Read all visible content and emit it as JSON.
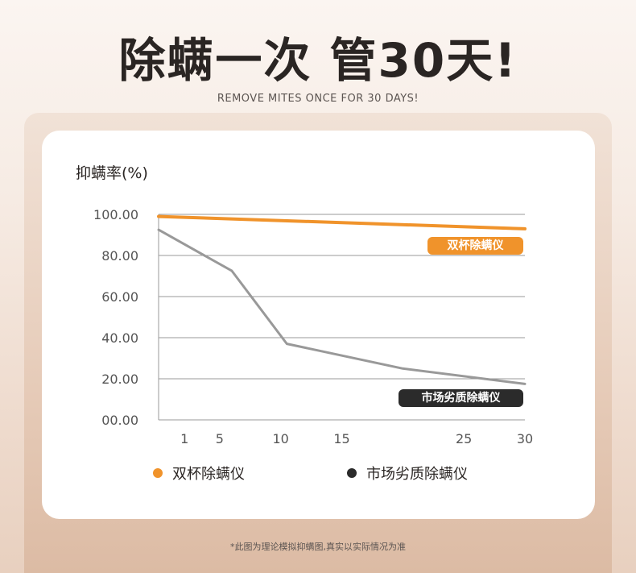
{
  "header": {
    "title": "除螨一次 管30天!",
    "subtitle": "REMOVE MITES ONCE FOR 30 DAYS!"
  },
  "note": "*此图为理论模拟抑螨图,真实以实际情况为准",
  "colors": {
    "accent": "#f0932b",
    "market": "#999999",
    "market_tag": "#2b2b2b",
    "grid": "#9a9a9a"
  },
  "chart_data": {
    "type": "line",
    "ylabel": "抑螨率(%)",
    "ylim": [
      0,
      100
    ],
    "yticks": [
      "100.00",
      "80.00",
      "60.00",
      "40.00",
      "20.00",
      "00.00"
    ],
    "ytick_values": [
      100,
      80,
      60,
      40,
      20,
      0
    ],
    "xticks": [
      "1",
      "5",
      "10",
      "15",
      "25",
      "30"
    ],
    "xtick_values": [
      1,
      5,
      10,
      15,
      25,
      30
    ],
    "xlim": [
      0,
      30
    ],
    "series": [
      {
        "name": "双杯除螨仪",
        "color": "#f0932b",
        "points": [
          [
            0,
            99
          ],
          [
            30,
            93
          ]
        ]
      },
      {
        "name": "市场劣质除螨仪",
        "color": "#999999",
        "points": [
          [
            0,
            92.5
          ],
          [
            6,
            72.5
          ],
          [
            10.5,
            37
          ],
          [
            20,
            25
          ],
          [
            30,
            17.5
          ]
        ]
      }
    ]
  },
  "legend": [
    {
      "label": "双杯除螨仪",
      "color": "#f0932b"
    },
    {
      "label": "市场劣质除螨仪",
      "color": "#2b2b2b"
    }
  ]
}
